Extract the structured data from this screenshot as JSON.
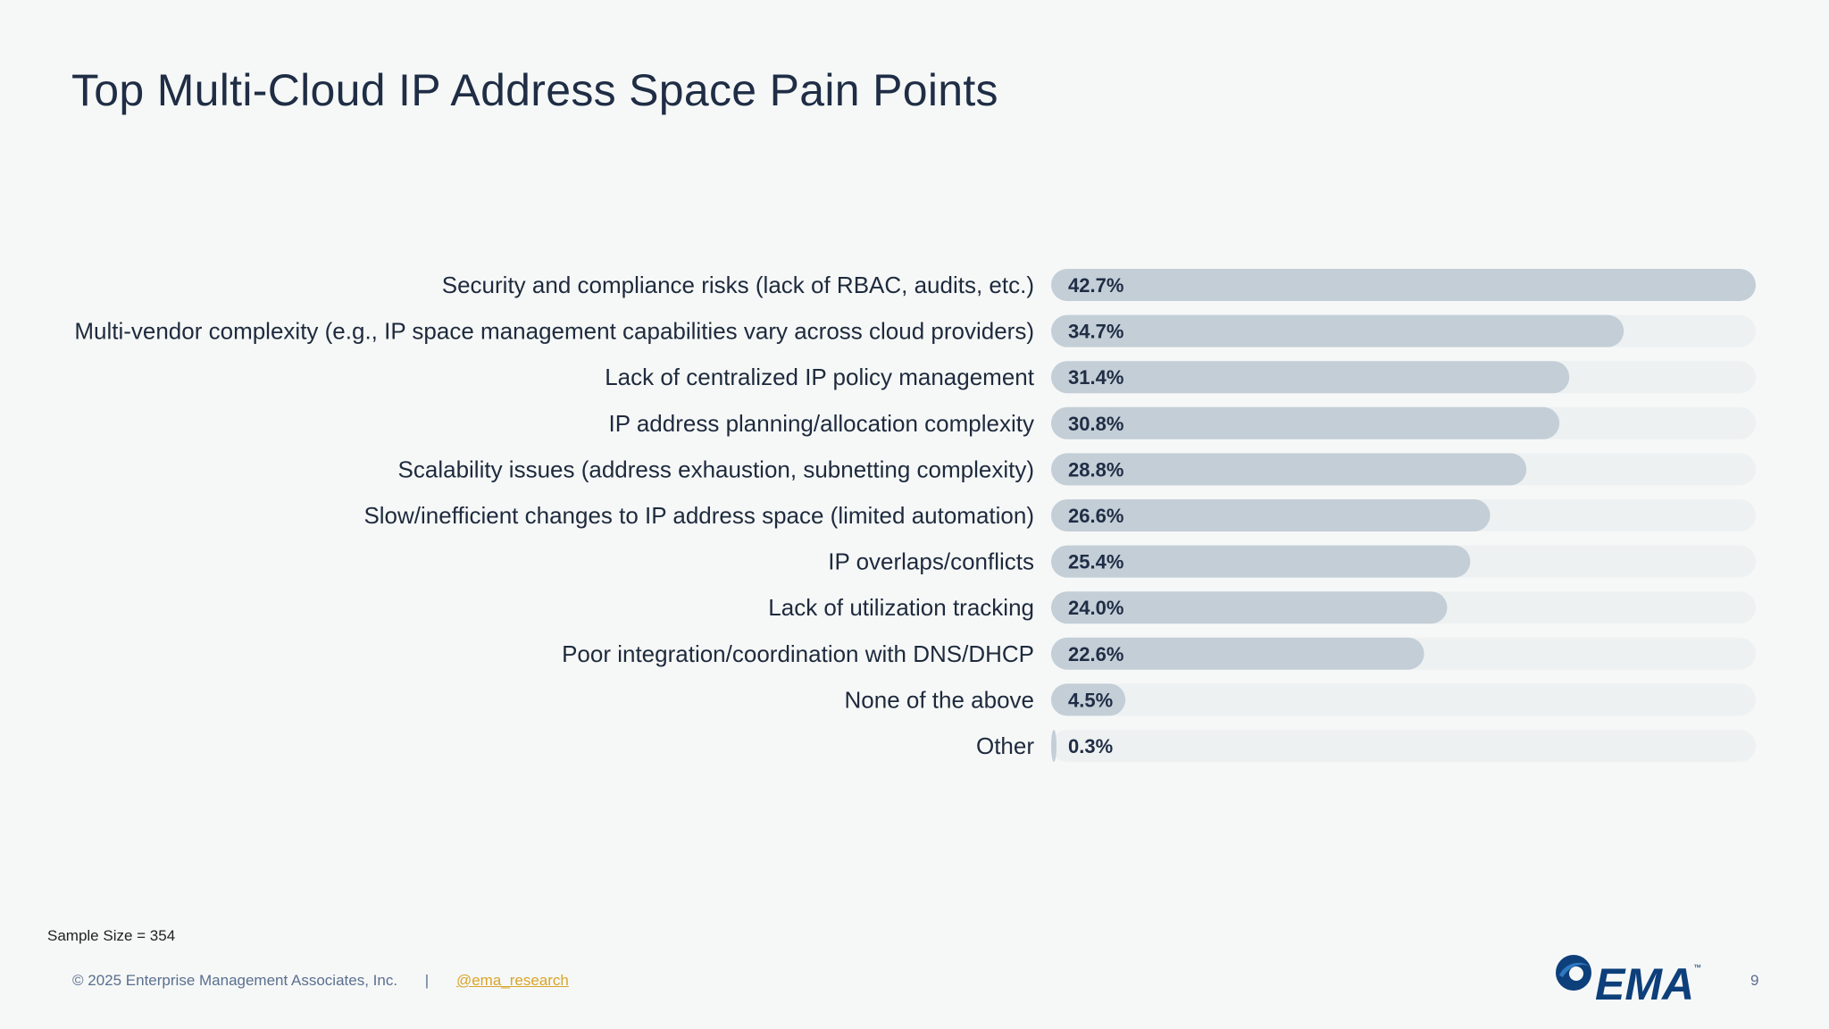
{
  "slide": {
    "title": "Top Multi-Cloud IP Address Space Pain Points",
    "sample_size": "Sample Size = 354",
    "copyright": "© 2025 Enterprise Management Associates, Inc.",
    "separator": "|",
    "social_handle": "@ema_research",
    "page_number": "9",
    "logo_text": "EMA",
    "logo_tm": "™"
  },
  "colors": {
    "bar": "#c3ced7",
    "track": "#eef1f1",
    "label": "#1e2a3d",
    "value": "#1f2d45",
    "logo_blue": "#0d3f7a",
    "logo_light": "#2e78c2"
  },
  "chart_data": {
    "type": "bar",
    "orientation": "horizontal",
    "title": "Top Multi-Cloud IP Address Space Pain Points",
    "xlim": [
      0,
      42.7
    ],
    "grid": false,
    "categories": [
      "Security and compliance risks (lack of RBAC, audits, etc.)",
      "Multi-vendor complexity (e.g., IP space management capabilities vary across cloud providers)",
      "Lack of centralized IP policy management",
      "IP address planning/allocation complexity",
      "Scalability issues (address exhaustion, subnetting complexity)",
      "Slow/inefficient changes to IP address space (limited automation)",
      "IP overlaps/conflicts",
      "Lack of utilization tracking",
      "Poor integration/coordination with DNS/DHCP",
      "None of the above",
      "Other"
    ],
    "values": [
      42.7,
      34.7,
      31.4,
      30.8,
      28.8,
      26.6,
      25.4,
      24.0,
      22.6,
      4.5,
      0.3
    ],
    "value_labels": [
      "42.7%",
      "34.7%",
      "31.4%",
      "30.8%",
      "28.8%",
      "26.6%",
      "25.4%",
      "24.0%",
      "22.6%",
      "4.5%",
      "0.3%"
    ]
  }
}
